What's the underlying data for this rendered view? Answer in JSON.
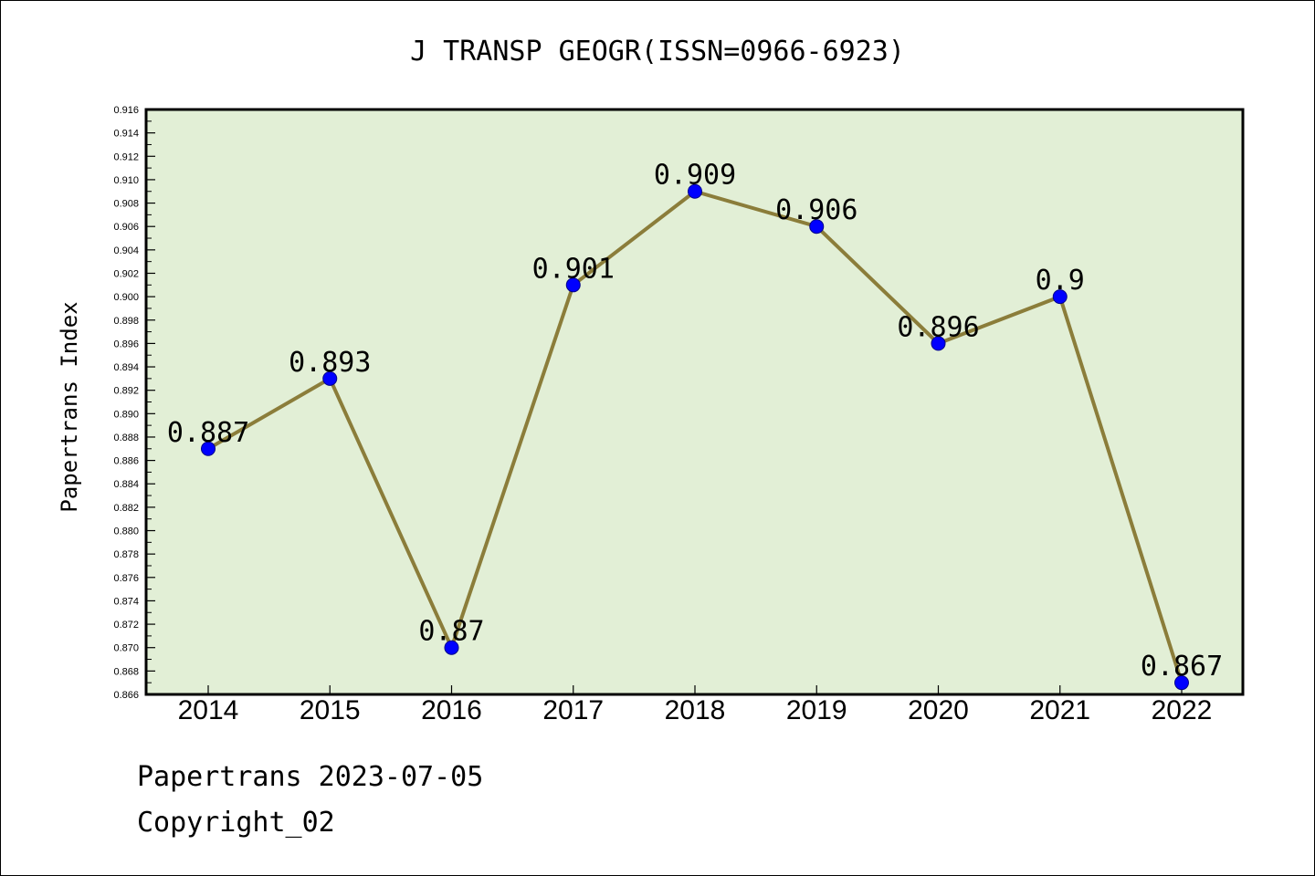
{
  "chart_data": {
    "type": "line",
    "title": "J TRANSP GEOGR(ISSN=0966-6923)",
    "xlabel": "",
    "ylabel": "Papertrans Index",
    "categories": [
      "2014",
      "2015",
      "2016",
      "2017",
      "2018",
      "2019",
      "2020",
      "2021",
      "2022"
    ],
    "series": [
      {
        "values": [
          0.887,
          0.893,
          0.87,
          0.901,
          0.909,
          0.906,
          0.896,
          0.9,
          0.867
        ],
        "labels": [
          "0.887",
          "0.893",
          "0.87",
          "0.901",
          "0.909",
          "0.906",
          "0.896",
          "0.9",
          "0.867"
        ]
      }
    ],
    "ylim": [
      0.866,
      0.916
    ],
    "ytick_step": 0.002,
    "grid": false,
    "line_color": "#8B7D3A",
    "marker_color": "#0000FF",
    "plot_bg": "#E2EFD6"
  },
  "footer": {
    "line1": "Papertrans 2023-07-05",
    "line2": "Copyright_02"
  }
}
